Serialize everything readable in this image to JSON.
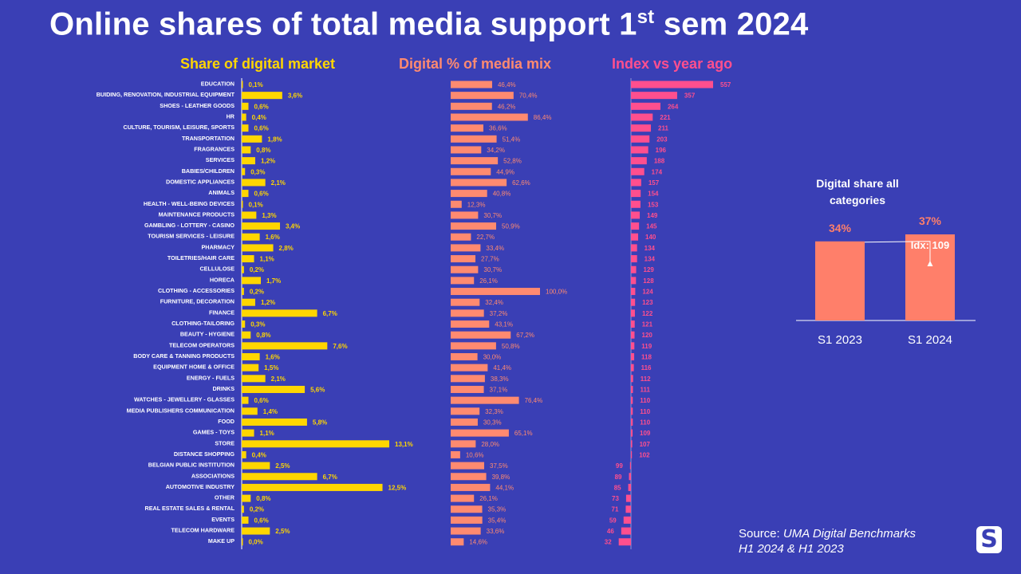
{
  "title": {
    "main": "Online shares of total media support 1",
    "sup": "st",
    "tail": " sem 2024"
  },
  "colors": {
    "background": "#3a3fb5",
    "yellow": "#ffd600",
    "salmon": "#ff8a70",
    "pink": "#ff4f8e",
    "side_bar": "#ff7f6a"
  },
  "chart_data": [
    {
      "type": "bar",
      "orientation": "horizontal",
      "title": "Share of digital market",
      "categories": [
        "EDUCATION",
        "BUIDING, RENOVATION, INDUSTRIAL EQUIPMENT",
        "SHOES - LEATHER GOODS",
        "HR",
        "CULTURE, TOURISM, LEISURE, SPORTS",
        "TRANSPORTATION",
        "FRAGRANCES",
        "SERVICES",
        "BABIES/CHILDREN",
        "DOMESTIC APPLIANCES",
        "ANIMALS",
        "HEALTH - WELL-BEING DEVICES",
        "MAINTENANCE PRODUCTS",
        "GAMBLING - LOTTERY - CASINO",
        "TOURISM SERVICES - LEISURE",
        "PHARMACY",
        "TOILETRIES/HAIR CARE",
        "CELLULOSE",
        "HORECA",
        "CLOTHING - ACCESSORIES",
        "FURNITURE, DECORATION",
        "FINANCE",
        "CLOTHING-TAILORING",
        "BEAUTY - HYGIENE",
        "TELECOM OPERATORS",
        "BODY CARE & TANNING PRODUCTS",
        "EQUIPMENT HOME & OFFICE",
        "ENERGY - FUELS",
        "DRINKS",
        "WATCHES - JEWELLERY - GLASSES",
        "MEDIA PUBLISHERS COMMUNICATION",
        "FOOD",
        "GAMES - TOYS",
        "STORE",
        "DISTANCE SHOPPING",
        "BELGIAN PUBLIC INSTITUTION",
        "ASSOCIATIONS",
        "AUTOMOTIVE INDUSTRY",
        "OTHER",
        "REAL ESTATE SALES & RENTAL",
        "EVENTS",
        "TELECOM HARDWARE",
        "MAKE UP"
      ],
      "values": [
        0.1,
        3.6,
        0.6,
        0.4,
        0.6,
        1.8,
        0.8,
        1.2,
        0.3,
        2.1,
        0.6,
        0.1,
        1.3,
        3.4,
        1.6,
        2.8,
        1.1,
        0.2,
        1.7,
        0.2,
        1.2,
        6.7,
        0.3,
        0.8,
        7.6,
        1.6,
        1.5,
        2.1,
        5.6,
        0.6,
        1.4,
        5.8,
        1.1,
        13.1,
        0.4,
        2.5,
        6.7,
        12.5,
        0.8,
        0.2,
        0.6,
        2.5,
        0.0
      ],
      "labels": [
        "0,1%",
        "3,6%",
        "0,6%",
        "0,4%",
        "0,6%",
        "1,8%",
        "0,8%",
        "1,2%",
        "0,3%",
        "2,1%",
        "0,6%",
        "0,1%",
        "1,3%",
        "3,4%",
        "1,6%",
        "2,8%",
        "1,1%",
        "0,2%",
        "1,7%",
        "0,2%",
        "1,2%",
        "6,7%",
        "0,3%",
        "0,8%",
        "7,6%",
        "1,6%",
        "1,5%",
        "2,1%",
        "5,6%",
        "0,6%",
        "1,4%",
        "5,8%",
        "1,1%",
        "13,1%",
        "0,4%",
        "2,5%",
        "6,7%",
        "12,5%",
        "0,8%",
        "0,2%",
        "0,6%",
        "2,5%",
        "0,0%"
      ],
      "unit": "%"
    },
    {
      "type": "bar",
      "orientation": "horizontal",
      "title": "Digital % of media mix",
      "values": [
        46.4,
        70.4,
        46.2,
        86.4,
        36.6,
        51.4,
        34.2,
        52.8,
        44.9,
        62.6,
        40.8,
        12.3,
        30.7,
        50.9,
        22.7,
        33.4,
        27.7,
        30.7,
        26.1,
        100.0,
        32.4,
        37.2,
        43.1,
        67.2,
        50.8,
        30.0,
        41.4,
        38.3,
        37.1,
        76.4,
        32.3,
        30.3,
        65.1,
        28.0,
        10.6,
        37.5,
        39.8,
        44.1,
        26.1,
        35.3,
        35.4,
        33.6,
        14.6
      ],
      "labels": [
        "46,4%",
        "70,4%",
        "46,2%",
        "86,4%",
        "36,6%",
        "51,4%",
        "34,2%",
        "52,8%",
        "44,9%",
        "62,6%",
        "40,8%",
        "12,3%",
        "30,7%",
        "50,9%",
        "22,7%",
        "33,4%",
        "27,7%",
        "30,7%",
        "26,1%",
        "100,0%",
        "32,4%",
        "37,2%",
        "43,1%",
        "67,2%",
        "50,8%",
        "30,0%",
        "41,4%",
        "38,3%",
        "37,1%",
        "76,4%",
        "32,3%",
        "30,3%",
        "65,1%",
        "28,0%",
        "10,6%",
        "37,5%",
        "39,8%",
        "44,1%",
        "26,1%",
        "35,3%",
        "35,4%",
        "33,6%",
        "14,6%"
      ],
      "unit": "%"
    },
    {
      "type": "bar",
      "orientation": "horizontal",
      "title": "Index vs year ago",
      "baseline": 100,
      "values": [
        557,
        357,
        264,
        221,
        211,
        203,
        196,
        188,
        174,
        157,
        154,
        153,
        149,
        145,
        140,
        134,
        134,
        129,
        128,
        124,
        123,
        122,
        121,
        120,
        119,
        118,
        116,
        112,
        111,
        110,
        110,
        110,
        109,
        107,
        102,
        99,
        89,
        85,
        73,
        71,
        59,
        46,
        32
      ],
      "labels": [
        "557",
        "357",
        "264",
        "221",
        "211",
        "203",
        "196",
        "188",
        "174",
        "157",
        "154",
        "153",
        "149",
        "145",
        "140",
        "134",
        "134",
        "129",
        "128",
        "124",
        "123",
        "122",
        "121",
        "120",
        "119",
        "118",
        "116",
        "112",
        "111",
        "110",
        "110",
        "110",
        "109",
        "107",
        "102",
        "99",
        "89",
        "85",
        "73",
        "71",
        "59",
        "46",
        "32"
      ]
    },
    {
      "type": "bar",
      "title": "Digital share all categories",
      "categories": [
        "S1 2023",
        "S1 2024"
      ],
      "values": [
        34,
        37
      ],
      "labels": [
        "34%",
        "37%"
      ],
      "annotation": "Idx: 109",
      "unit": "%"
    }
  ],
  "source": {
    "prefix": "Source: ",
    "name": "UMA Digital Benchmarks",
    "period": "H1 2024 & H1 2023"
  },
  "logo": "S"
}
